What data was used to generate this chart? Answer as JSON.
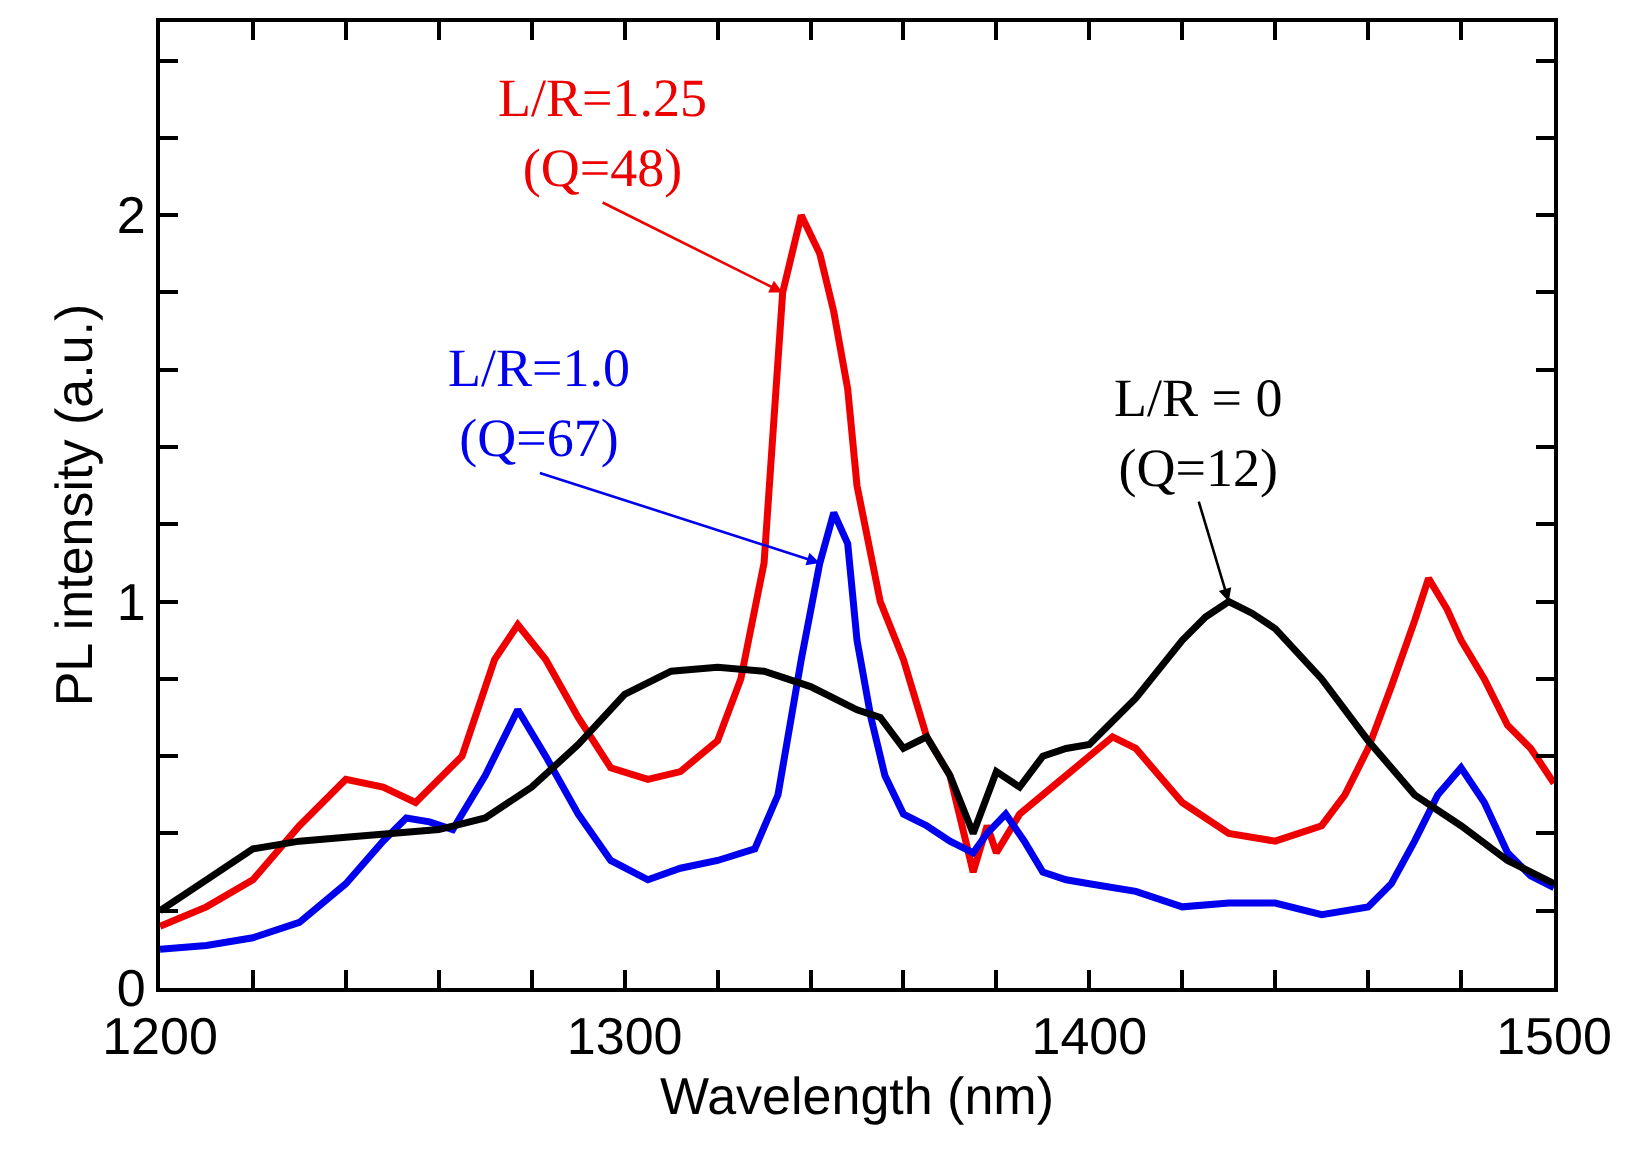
{
  "chart_data": {
    "type": "line",
    "xlabel": "Wavelength (nm)",
    "ylabel": "PL intensity (a.u.)",
    "xlim": [
      1200,
      1500
    ],
    "ylim": [
      0,
      2.5
    ],
    "xticks": [
      1200,
      {
        "value": 1220,
        "label": null
      },
      {
        "value": 1240,
        "label": null
      },
      {
        "value": 1260,
        "label": null
      },
      {
        "value": 1280,
        "label": null
      },
      1300,
      {
        "value": 1320,
        "label": null
      },
      {
        "value": 1340,
        "label": null
      },
      {
        "value": 1360,
        "label": null
      },
      {
        "value": 1380,
        "label": null
      },
      1400,
      {
        "value": 1420,
        "label": null
      },
      {
        "value": 1440,
        "label": null
      },
      {
        "value": 1460,
        "label": null
      },
      {
        "value": 1480,
        "label": null
      },
      1500
    ],
    "yticks": [
      0,
      {
        "value": 0.2,
        "label": null
      },
      {
        "value": 0.4,
        "label": null
      },
      {
        "value": 0.6,
        "label": null
      },
      {
        "value": 0.8,
        "label": null
      },
      1,
      {
        "value": 1.2,
        "label": null
      },
      {
        "value": 1.4,
        "label": null
      },
      {
        "value": 1.6,
        "label": null
      },
      {
        "value": 1.8,
        "label": null
      },
      2,
      {
        "value": 2.2,
        "label": null
      },
      {
        "value": 2.4,
        "label": null
      }
    ],
    "marker": "none",
    "line_style": "solid",
    "series": [
      {
        "color": "#ee0000",
        "x": [
          1200,
          1210,
          1220,
          1230,
          1240,
          1248,
          1255,
          1265,
          1272,
          1277,
          1283,
          1290,
          1297,
          1305,
          1312,
          1320,
          1325,
          1330,
          1334,
          1338,
          1342,
          1345,
          1348,
          1350,
          1355,
          1360,
          1365,
          1370,
          1373,
          1375,
          1378,
          1380,
          1385,
          1390,
          1395,
          1400,
          1405,
          1410,
          1420,
          1430,
          1440,
          1450,
          1455,
          1460,
          1465,
          1470,
          1473,
          1477,
          1480,
          1485,
          1490,
          1495,
          1500
        ],
        "values": [
          0.16,
          0.21,
          0.28,
          0.42,
          0.54,
          0.52,
          0.48,
          0.6,
          0.85,
          0.94,
          0.85,
          0.7,
          0.57,
          0.54,
          0.56,
          0.64,
          0.8,
          1.1,
          1.8,
          2.0,
          1.9,
          1.75,
          1.55,
          1.3,
          1.0,
          0.85,
          0.65,
          0.55,
          0.4,
          0.3,
          0.42,
          0.35,
          0.45,
          0.5,
          0.55,
          0.6,
          0.65,
          0.62,
          0.48,
          0.4,
          0.38,
          0.42,
          0.5,
          0.62,
          0.78,
          0.95,
          1.06,
          0.98,
          0.9,
          0.8,
          0.68,
          0.62,
          0.53
        ]
      },
      {
        "color": "#0000ee",
        "x": [
          1200,
          1210,
          1220,
          1230,
          1240,
          1248,
          1253,
          1258,
          1263,
          1270,
          1277,
          1283,
          1290,
          1297,
          1305,
          1312,
          1320,
          1328,
          1333,
          1338,
          1342,
          1345,
          1348,
          1350,
          1353,
          1356,
          1360,
          1365,
          1370,
          1375,
          1378,
          1382,
          1386,
          1390,
          1395,
          1400,
          1410,
          1420,
          1430,
          1440,
          1450,
          1460,
          1465,
          1470,
          1475,
          1480,
          1485,
          1490,
          1495,
          1500
        ],
        "values": [
          0.1,
          0.11,
          0.13,
          0.17,
          0.27,
          0.38,
          0.44,
          0.43,
          0.41,
          0.55,
          0.72,
          0.6,
          0.45,
          0.33,
          0.28,
          0.31,
          0.33,
          0.36,
          0.5,
          0.85,
          1.1,
          1.23,
          1.15,
          0.9,
          0.7,
          0.55,
          0.45,
          0.42,
          0.38,
          0.35,
          0.4,
          0.45,
          0.38,
          0.3,
          0.28,
          0.27,
          0.25,
          0.21,
          0.22,
          0.22,
          0.19,
          0.21,
          0.27,
          0.38,
          0.5,
          0.57,
          0.48,
          0.35,
          0.29,
          0.26
        ]
      },
      {
        "color": "#000000",
        "x": [
          1200,
          1210,
          1220,
          1230,
          1240,
          1260,
          1270,
          1280,
          1290,
          1300,
          1310,
          1320,
          1330,
          1340,
          1350,
          1355,
          1360,
          1365,
          1370,
          1375,
          1380,
          1385,
          1390,
          1395,
          1400,
          1410,
          1420,
          1425,
          1430,
          1435,
          1440,
          1450,
          1460,
          1470,
          1480,
          1490,
          1500
        ],
        "values": [
          0.2,
          0.28,
          0.36,
          0.38,
          0.39,
          0.41,
          0.44,
          0.52,
          0.63,
          0.76,
          0.82,
          0.83,
          0.82,
          0.78,
          0.72,
          0.7,
          0.62,
          0.65,
          0.55,
          0.4,
          0.56,
          0.52,
          0.6,
          0.62,
          0.63,
          0.75,
          0.9,
          0.96,
          1.0,
          0.97,
          0.93,
          0.8,
          0.64,
          0.5,
          0.42,
          0.33,
          0.27
        ]
      }
    ],
    "annotations": [
      {
        "text": "L/R=1.25\n(Q=48)",
        "x": 1334,
        "y": 1.8
      },
      {
        "text": "L/R=1.0\n(Q=67)",
        "x": 1342,
        "y": 1.1
      },
      {
        "text": "L/R = 0\n(Q=12)",
        "x": 1430,
        "y": 1.0
      }
    ]
  }
}
